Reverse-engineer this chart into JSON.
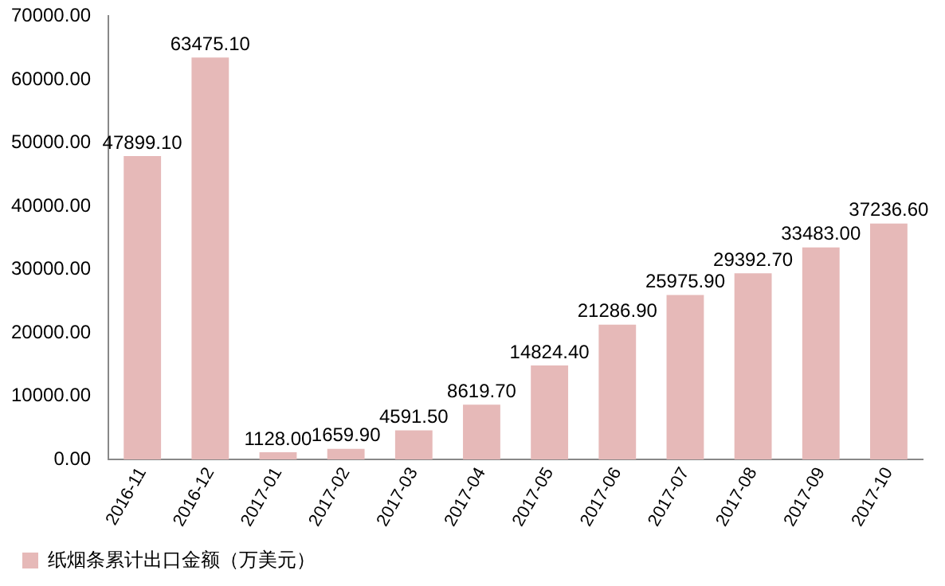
{
  "chart_data": {
    "type": "bar",
    "categories": [
      "2016-11",
      "2016-12",
      "2017-01",
      "2017-02",
      "2017-03",
      "2017-04",
      "2017-05",
      "2017-06",
      "2017-07",
      "2017-08",
      "2017-09",
      "2017-10"
    ],
    "series": [
      {
        "name": "纸烟条累计出口金额（万美元）",
        "color": "#e6b9b8",
        "values": [
          47899.1,
          63475.1,
          1128,
          1659.9,
          4591.5,
          8619.7,
          14824.4,
          21286.9,
          25975.9,
          29392.7,
          33483,
          37236.6
        ],
        "value_labels": [
          "47899.10",
          "63475.10",
          "1128.00",
          "1659.90",
          "4591.50",
          "8619.70",
          "14824.40",
          "21286.90",
          "25975.90",
          "29392.70",
          "33483.00",
          "37236.60"
        ]
      }
    ],
    "ylim": [
      0,
      70000
    ],
    "yticks": [
      {
        "value": 0,
        "label": "0.00"
      },
      {
        "value": 10000,
        "label": "10000.00"
      },
      {
        "value": 20000,
        "label": "20000.00"
      },
      {
        "value": 30000,
        "label": "30000.00"
      },
      {
        "value": 40000,
        "label": "40000.00"
      },
      {
        "value": 50000,
        "label": "50000.00"
      },
      {
        "value": 60000,
        "label": "60000.00"
      },
      {
        "value": 70000,
        "label": "70000.00"
      }
    ],
    "grid": false,
    "legend": "bottom"
  }
}
